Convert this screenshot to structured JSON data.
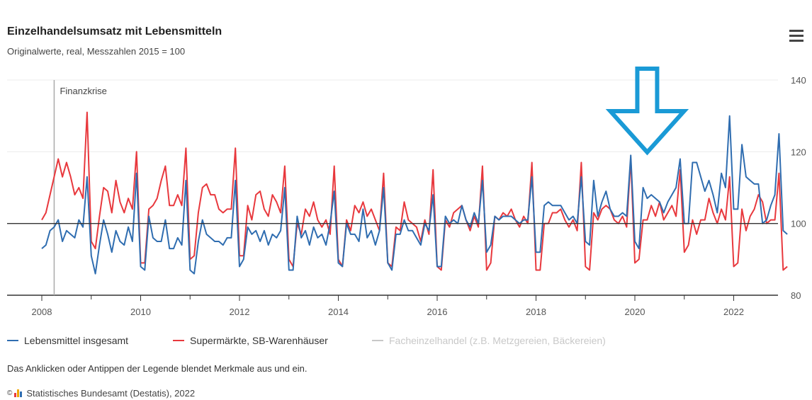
{
  "header": {
    "title": "Einzelhandelsumsatz mit Lebensmitteln",
    "subtitle": "Originalwerte, real, Messzahlen 2015 = 100"
  },
  "annotation": {
    "label": "Finanzkrise"
  },
  "legend": {
    "items": [
      {
        "label": "Lebensmittel insgesamt",
        "color": "#2f6db0"
      },
      {
        "label": "Supermärkte, SB-Warenhäuser",
        "color": "#e8383d"
      },
      {
        "label": "Facheinzelhandel (z.B. Metzgereien, Bäckereien)",
        "color": "#c8c8c8"
      }
    ]
  },
  "note": "Das Anklicken oder Antippen der Legende blendet Merkmale aus und ein.",
  "credits": {
    "symbol": "©",
    "text": "Statistisches Bundesamt (Destatis), 2022"
  },
  "chart_data": {
    "type": "line",
    "title": "Einzelhandelsumsatz mit Lebensmitteln",
    "subtitle": "Originalwerte, real, Messzahlen 2015 = 100",
    "x_range": [
      2008.0,
      2022.5
    ],
    "ylim": [
      80,
      140
    ],
    "x_ticks": [
      "2008",
      "2010",
      "2012",
      "2014",
      "2016",
      "2018",
      "2020",
      "2022"
    ],
    "y_ticks": [
      "80",
      "100",
      "120",
      "140"
    ],
    "y_axis_side": "right",
    "reference_line": 100,
    "grid": true,
    "legend_position": "bottom",
    "marker": {
      "x": 2008.25,
      "label": "Finanzkrise"
    },
    "arrow": {
      "x": 2020.25,
      "pointing": "down",
      "color": "#1a9ad6"
    },
    "series": [
      {
        "name": "Lebensmittel insgesamt",
        "color": "#2f6db0",
        "start": 2008.0,
        "values": [
          93,
          94,
          98,
          99,
          101,
          95,
          98,
          97,
          96,
          101,
          99,
          113,
          91,
          86,
          94,
          101,
          97,
          92,
          98,
          95,
          94,
          99,
          95,
          114,
          88,
          87,
          102,
          96,
          95,
          95,
          101,
          93,
          93,
          96,
          94,
          112,
          87,
          86,
          95,
          101,
          97,
          96,
          95,
          95,
          94,
          96,
          96,
          112,
          88,
          90,
          99,
          97,
          98,
          95,
          98,
          94,
          97,
          96,
          98,
          110,
          87,
          87,
          102,
          96,
          98,
          94,
          99,
          96,
          97,
          94,
          100,
          109,
          89,
          88,
          100,
          97,
          97,
          95,
          104,
          96,
          98,
          94,
          98,
          110,
          89,
          87,
          97,
          97,
          101,
          98,
          98,
          96,
          94,
          100,
          98,
          108,
          88,
          88,
          102,
          100,
          101,
          100,
          105,
          101,
          99,
          103,
          100,
          112,
          92,
          94,
          102,
          101,
          102,
          102,
          102,
          101,
          100,
          101,
          101,
          113,
          92,
          92,
          105,
          106,
          105,
          105,
          105,
          103,
          101,
          102,
          100,
          113,
          95,
          94,
          112,
          102,
          106,
          109,
          104,
          102,
          102,
          103,
          102,
          119,
          95,
          93,
          110,
          107,
          108,
          107,
          106,
          103,
          106,
          108,
          110,
          118,
          100,
          100,
          117,
          117,
          113,
          109,
          112,
          108,
          103,
          114,
          110,
          130,
          104,
          104,
          122,
          113,
          112,
          111,
          111,
          100,
          101,
          105,
          108,
          125,
          98,
          97
        ]
      },
      {
        "name": "Supermärkte, SB-Warenhäuser",
        "color": "#e8383d",
        "start": 2008.0,
        "values": [
          101,
          103,
          108,
          113,
          118,
          113,
          117,
          113,
          108,
          110,
          107,
          131,
          95,
          93,
          102,
          110,
          109,
          103,
          112,
          106,
          103,
          107,
          104,
          120,
          89,
          89,
          104,
          105,
          107,
          112,
          116,
          105,
          105,
          108,
          105,
          121,
          90,
          91,
          103,
          110,
          111,
          108,
          108,
          104,
          103,
          104,
          104,
          121,
          91,
          91,
          105,
          101,
          108,
          109,
          104,
          102,
          108,
          106,
          103,
          116,
          90,
          88,
          100,
          97,
          104,
          102,
          106,
          101,
          99,
          101,
          97,
          116,
          90,
          88,
          101,
          98,
          105,
          103,
          106,
          102,
          104,
          101,
          98,
          114,
          89,
          88,
          99,
          98,
          106,
          101,
          100,
          99,
          95,
          101,
          97,
          115,
          88,
          87,
          101,
          99,
          103,
          104,
          105,
          101,
          98,
          102,
          99,
          116,
          87,
          89,
          102,
          101,
          103,
          102,
          104,
          101,
          99,
          102,
          100,
          117,
          87,
          87,
          100,
          100,
          103,
          103,
          104,
          101,
          99,
          101,
          98,
          117,
          88,
          87,
          103,
          101,
          104,
          105,
          104,
          101,
          100,
          102,
          99,
          118,
          89,
          90,
          101,
          101,
          105,
          102,
          106,
          101,
          103,
          105,
          102,
          115,
          92,
          94,
          101,
          97,
          101,
          101,
          107,
          103,
          100,
          104,
          101,
          113,
          88,
          89,
          104,
          98,
          102,
          104,
          108,
          106,
          100,
          101,
          101,
          114,
          87,
          88
        ]
      },
      {
        "name": "Facheinzelhandel (z.B. Metzgereien, Bäckereien)",
        "color": "#c8c8c8",
        "visible": false,
        "values": []
      }
    ]
  }
}
